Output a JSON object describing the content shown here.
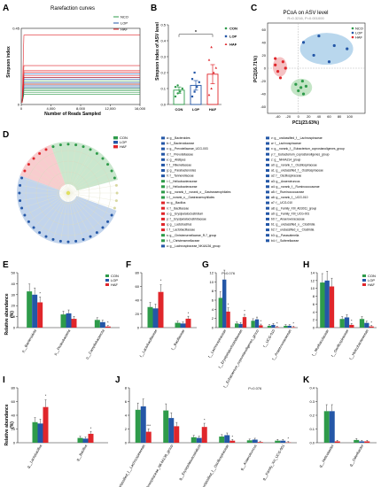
{
  "colors": {
    "CON": "#2e9b4a",
    "LOP": "#2457a7",
    "HAF": "#e0262b",
    "NCO": "#2e9b4a",
    "HAF_fill": "#f3b2b4",
    "LOP_fill": "#a8cde8",
    "NCO_fill": "#b5deb8"
  },
  "groups": [
    "CON",
    "LOP",
    "HAF"
  ],
  "panels": {
    "A": {
      "letter": "A",
      "title": "Rarefaction curves",
      "xlabel": "Number of Reads Sampled",
      "ylabel": "Simpson index",
      "legend": [
        "NCO",
        "LOP",
        "HAF"
      ]
    },
    "B": {
      "letter": "B",
      "ylabel": "Simpson index of ASV level",
      "sig": "*"
    },
    "C": {
      "letter": "C",
      "title": "PCoA on ASV level",
      "subtitle": "R=0.3216, P=0.001000",
      "xlabel": "PC1(23.63%)",
      "ylabel": "PC2(16.71%)",
      "legend": [
        "NCO",
        "LOP",
        "HAF"
      ]
    },
    "D": {
      "letter": "D"
    },
    "E": {
      "letter": "E"
    },
    "F": {
      "letter": "F"
    },
    "G": {
      "letter": "G"
    },
    "H": {
      "letter": "H"
    },
    "I": {
      "letter": "I"
    },
    "J": {
      "letter": "J"
    },
    "K": {
      "letter": "K"
    }
  },
  "rel_ab_label": "Relative abundance",
  "rel_ab_label_pct": "(%)",
  "lefse": {
    "legend": [
      "CON",
      "LOP",
      "HAF"
    ],
    "col1": [
      "a: g__Bacteroides",
      "b: f__Bacteroidaceae",
      "c: g__Prevotellaceae_UCG-003",
      "d: f__Prevotellaceae",
      "e: g__Alistipes",
      "f: f__Rikenellaceae",
      "g: g__Parabacteroides",
      "h: f__Tannerellaceae",
      "i: f__Helicobacteraceae",
      "j: f__Helicobacteraceae",
      "k: g__norank_f__norank_o__Gastranaerophilales",
      "l: f__norank_o__Gastranaerophilales",
      "m: g__Bacillus",
      "n: f__Bacillaceae",
      "o: g__Erysipelatoclostridium",
      "p: f__Erysipelatoclostridiaceae",
      "q: g__Lactobacillus",
      "r: f__Lactobacillaceae",
      "s: g__Christensenellaceae_R-7_group",
      "t: f__Christensenellaceae",
      "u: g__Lachnospiraceae_NK4A136_group"
    ],
    "col2": [
      "v: g__unclassified_f__Lachnospiraceae",
      "w: f__Lachnospiraceae",
      "x: g__norank_f__Eubacterium_coprostanoligenes_group",
      "y: f__Eubacterium_coprostanoligenes_group",
      "z: g__NK4A214_group",
      "a0: g__norank_f__Oscillospiraceae",
      "a1: g__unclassified_f__Oscillospiraceae",
      "a2: f__Oscillospiraceae",
      "a3: g__Anaerotruncus",
      "a4: g__norank_f__Ruminococcaceae",
      "a5: f__Ruminococcaceae",
      "a6: g__norank_f__UCG-010",
      "a7: f__UCG-010",
      "a8: g__Family_XIII_AD3011_group",
      "a9: g__Family_XIII_UCG-001",
      "b0: f__Anaerovoracaceae",
      "b1: g__unclassified_o__Clostridia",
      "b2: f__unclassified_o__Clostridia",
      "b3: g__Parasutterella",
      "b4: f__Sutterellaceae"
    ],
    "col1_colors": [
      "LOP",
      "LOP",
      "LOP",
      "LOP",
      "LOP",
      "LOP",
      "LOP",
      "LOP",
      "CON",
      "CON",
      "CON",
      "CON",
      "HAF",
      "HAF",
      "HAF",
      "HAF",
      "HAF",
      "HAF",
      "CON",
      "CON",
      "LOP"
    ],
    "col2_colors": [
      "LOP",
      "LOP",
      "LOP",
      "LOP",
      "LOP",
      "LOP",
      "LOP",
      "LOP",
      "LOP",
      "LOP",
      "LOP",
      "LOP",
      "LOP",
      "LOP",
      "LOP",
      "LOP",
      "LOP",
      "LOP",
      "LOP",
      "LOP"
    ]
  },
  "chart_data": [
    {
      "panel": "A",
      "type": "line",
      "title": "Rarefaction curves",
      "xlabel": "Number of Reads Sampled",
      "ylabel": "Simpson index",
      "xlim": [
        0,
        16000
      ],
      "ylim": [
        0,
        0.45
      ],
      "xticks": [
        "0",
        "4,000",
        "8,000",
        "12,000",
        "16,000"
      ],
      "yticks": [
        "0",
        "0.45"
      ],
      "series": [
        {
          "name": "NCO",
          "levels": [
            0.14,
            0.12,
            0.1,
            0.09,
            0.08,
            0.07,
            0.06
          ]
        },
        {
          "name": "LOP",
          "levels": [
            0.18,
            0.16,
            0.15,
            0.13,
            0.11,
            0.1
          ]
        },
        {
          "name": "HAF",
          "levels": [
            0.41,
            0.23,
            0.2,
            0.19,
            0.17,
            0.16,
            0.12
          ]
        }
      ]
    },
    {
      "panel": "B",
      "type": "bar",
      "ylabel": "Simpson index of ASV level",
      "categories": [
        "CON",
        "LOP",
        "HAF"
      ],
      "ylim": [
        0,
        0.5
      ],
      "yticks": [
        "0.0",
        "0.1",
        "0.2",
        "0.3",
        "0.4",
        "0.5"
      ],
      "values": [
        0.09,
        0.12,
        0.19
      ],
      "errors": [
        0.02,
        0.03,
        0.06
      ],
      "points": [
        [
          0.05,
          0.07,
          0.08,
          0.1,
          0.11,
          0.12
        ],
        [
          0.05,
          0.08,
          0.11,
          0.14,
          0.16,
          0.2
        ],
        [
          0.06,
          0.1,
          0.2,
          0.23,
          0.28,
          0.36
        ]
      ]
    },
    {
      "panel": "C",
      "type": "scatter",
      "title": "PCoA on ASV level",
      "xlabel": "PC1(23.63%)",
      "ylabel": "PC2(16.71%)",
      "xlim": [
        -60,
        130
      ],
      "ylim": [
        -70,
        70
      ],
      "xticks": [
        "-40",
        "-20",
        "0",
        "20",
        "40",
        "60",
        "80",
        "100"
      ],
      "yticks": [
        "-60",
        "-40",
        "-20",
        "0",
        "20",
        "40",
        "60"
      ],
      "series": [
        {
          "name": "NCO",
          "points": [
            [
              -5,
              -25
            ],
            [
              5,
              -30
            ],
            [
              10,
              -40
            ],
            [
              0,
              -35
            ],
            [
              15,
              -28
            ],
            [
              8,
              -20
            ]
          ]
        },
        {
          "name": "LOP",
          "points": [
            [
              10,
              40
            ],
            [
              40,
              50
            ],
            [
              60,
              10
            ],
            [
              70,
              35
            ],
            [
              95,
              30
            ],
            [
              30,
              20
            ]
          ]
        },
        {
          "name": "HAF",
          "points": [
            [
              -40,
              -5
            ],
            [
              -30,
              10
            ],
            [
              -45,
              15
            ],
            [
              -25,
              0
            ],
            [
              -35,
              -15
            ],
            [
              -45,
              5
            ]
          ]
        }
      ]
    },
    {
      "panel": "E",
      "type": "bar",
      "ylim": [
        0,
        50
      ],
      "yticks": [
        "0",
        "10",
        "20",
        "30",
        "40",
        "50"
      ],
      "categories": [
        "p__Bacteroidota",
        "p__Proteobacteria",
        "p__Campilobacterota"
      ],
      "series": [
        {
          "name": "CON",
          "values": [
            33,
            12,
            7
          ]
        },
        {
          "name": "LOP",
          "values": [
            30,
            13,
            5
          ]
        },
        {
          "name": "HAF",
          "values": [
            23,
            8,
            1
          ]
        }
      ],
      "sig": [
        "*",
        "",
        "*"
      ]
    },
    {
      "panel": "F",
      "type": "bar",
      "ylim": [
        0,
        80
      ],
      "yticks": [
        "0",
        "20",
        "40",
        "60",
        "80"
      ],
      "categories": [
        "f__Lactobacillaceae",
        "f__Bacillaceae"
      ],
      "series": [
        {
          "name": "CON",
          "values": [
            30,
            7
          ]
        },
        {
          "name": "LOP",
          "values": [
            28,
            6
          ]
        },
        {
          "name": "HAF",
          "values": [
            52,
            13
          ]
        }
      ],
      "sig": [
        "*",
        "*"
      ]
    },
    {
      "panel": "G",
      "type": "bar",
      "ylim": [
        0,
        12
      ],
      "yticks": [
        "0",
        "2",
        "4",
        "6",
        "8",
        "10",
        "12"
      ],
      "categories": [
        "f__Lachnospiraceae",
        "f__Erysipelatoclostridiaceae",
        "f__Eubacterium_coprostanoligenes_group",
        "f__UCG-010",
        "f__Anaerovoracaceae"
      ],
      "series": [
        {
          "name": "CON",
          "values": [
            6.5,
            0.9,
            1.5,
            0.4,
            0.4
          ]
        },
        {
          "name": "LOP",
          "values": [
            10.5,
            0.8,
            1.8,
            0.6,
            0.4
          ]
        },
        {
          "name": "HAF",
          "values": [
            3.5,
            2.3,
            0.5,
            0.1,
            0.1
          ]
        }
      ],
      "sig": [
        "*",
        "*",
        "*",
        "*",
        "*"
      ],
      "annotation": "P=0.076"
    },
    {
      "panel": "H",
      "type": "bar",
      "ylim": [
        0,
        14
      ],
      "yticks": [
        "0",
        "2",
        "4",
        "6",
        "8",
        "10",
        "12",
        "14"
      ],
      "categories": [
        "f__Muribaculaceae",
        "f__Oscillospiraceae",
        "f__Helicobacteraceae"
      ],
      "series": [
        {
          "name": "CON",
          "values": [
            11.5,
            2.2,
            2.2
          ]
        },
        {
          "name": "LOP",
          "values": [
            12,
            2.6,
            1.2
          ]
        },
        {
          "name": "HAF",
          "values": [
            10.5,
            0.7,
            0.3
          ]
        }
      ],
      "sig": [
        "",
        "*",
        "*"
      ]
    },
    {
      "panel": "I",
      "type": "bar",
      "ylim": [
        0,
        80
      ],
      "yticks": [
        "0",
        "20",
        "40",
        "60",
        "80"
      ],
      "categories": [
        "g__Lactobacillus",
        "g__Bacillus"
      ],
      "series": [
        {
          "name": "CON",
          "values": [
            30,
            7
          ]
        },
        {
          "name": "LOP",
          "values": [
            28,
            6
          ]
        },
        {
          "name": "HAF",
          "values": [
            52,
            13
          ]
        }
      ],
      "sig": [
        "*",
        "*"
      ]
    },
    {
      "panel": "J",
      "type": "bar",
      "ylim": [
        0,
        8
      ],
      "yticks": [
        "0",
        "2",
        "4",
        "6",
        "8"
      ],
      "categories": [
        "g__unclassified_f__Lachnospiraceae",
        "g__Lachnospiraceae_NK4A136_group",
        "g__Erysipelatoclostridium",
        "g__unclassified_f__Oscillospiraceae",
        "g__Anaerotruncus",
        "g__Family_XIII_UCG-001"
      ],
      "series": [
        {
          "name": "CON",
          "values": [
            4.8,
            4.7,
            0.8,
            0.9,
            0.35,
            0.3
          ]
        },
        {
          "name": "LOP",
          "values": [
            5.3,
            3.6,
            0.7,
            1.1,
            0.45,
            0.3
          ]
        },
        {
          "name": "HAF",
          "values": [
            1.6,
            2.4,
            2.3,
            0.3,
            0.1,
            0.05
          ]
        }
      ],
      "sig": [
        "***",
        "",
        "*",
        "*",
        "",
        "*"
      ],
      "annotation": "P=0.076"
    },
    {
      "panel": "K",
      "type": "bar",
      "ylim": [
        0,
        0.4
      ],
      "yticks": [
        "0.0",
        "0.1",
        "0.2",
        "0.3",
        "0.4"
      ],
      "categories": [
        "g__Helicobacter",
        "g__Odoribacter"
      ],
      "series": [
        {
          "name": "CON",
          "values": [
            0.23,
            0.02
          ]
        },
        {
          "name": "LOP",
          "values": [
            0.23,
            0.01
          ]
        },
        {
          "name": "HAF",
          "values": [
            0.01,
            0.01
          ]
        }
      ],
      "sig": [
        "",
        ""
      ]
    }
  ]
}
